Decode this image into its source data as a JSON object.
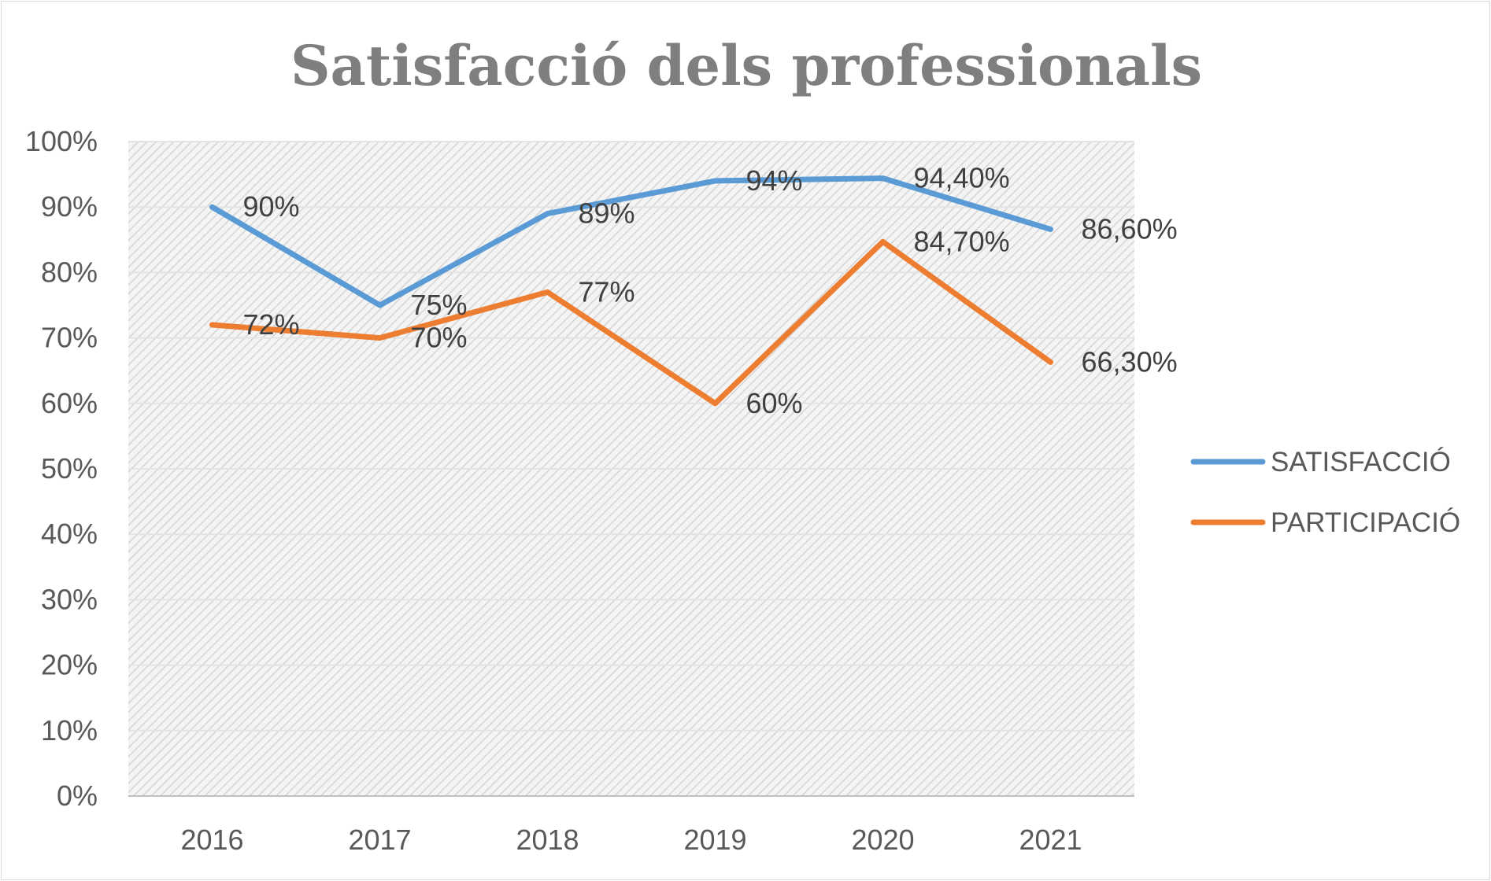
{
  "chart_data": {
    "type": "line",
    "title": "Satisfacció dels professionals",
    "categories": [
      "2016",
      "2017",
      "2018",
      "2019",
      "2020",
      "2021"
    ],
    "y_ticks": [
      "0%",
      "10%",
      "20%",
      "30%",
      "40%",
      "50%",
      "60%",
      "70%",
      "80%",
      "90%",
      "100%"
    ],
    "ylim": [
      0,
      100
    ],
    "grid": true,
    "legend_position": "right",
    "series": [
      {
        "name": "SATISFACCIÓ",
        "color": "#5b9bd5",
        "values": [
          90,
          75,
          89,
          94,
          94.4,
          86.6
        ],
        "labels": [
          "90%",
          "75%",
          "89%",
          "94%",
          "94,40%",
          "86,60%"
        ]
      },
      {
        "name": "PARTICIPACIÓ",
        "color": "#ed7d31",
        "values": [
          72,
          70,
          77,
          60,
          84.7,
          66.3
        ],
        "labels": [
          "72%",
          "70%",
          "77%",
          "60%",
          "84,70%",
          "66,30%"
        ]
      }
    ]
  }
}
